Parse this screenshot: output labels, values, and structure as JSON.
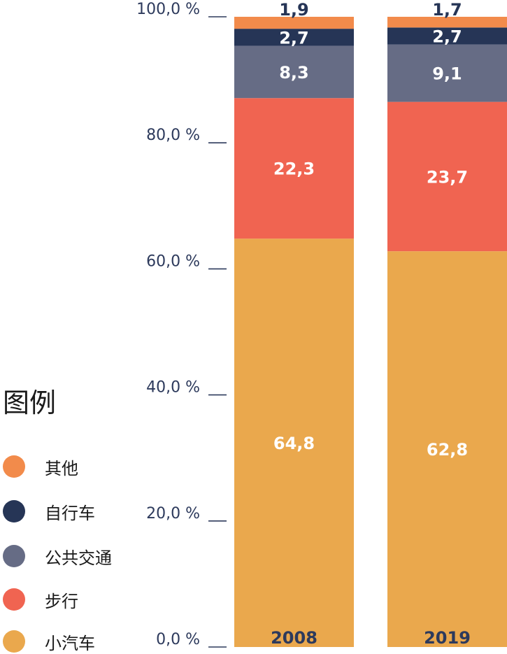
{
  "chart_data": {
    "type": "bar",
    "stacked": true,
    "categories": [
      "2008",
      "2019"
    ],
    "series": [
      {
        "name": "小汽车",
        "color": "#eaa84d",
        "values": [
          64.8,
          62.8
        ],
        "labels": [
          "64,8",
          "62,8"
        ],
        "label_color": "#ffffff"
      },
      {
        "name": "步行",
        "color": "#f06451",
        "values": [
          22.3,
          23.7
        ],
        "labels": [
          "22,3",
          "23,7"
        ],
        "label_color": "#ffffff"
      },
      {
        "name": "公共交通",
        "color": "#666c85",
        "values": [
          8.3,
          9.1
        ],
        "labels": [
          "8,3",
          "9,1"
        ],
        "label_color": "#ffffff"
      },
      {
        "name": "自行车",
        "color": "#263556",
        "values": [
          2.7,
          2.7
        ],
        "labels": [
          "2,7",
          "2,7"
        ],
        "label_color": "#ffffff"
      },
      {
        "name": "其他",
        "color": "#f28b4b",
        "values": [
          1.9,
          1.7
        ],
        "labels": [
          "1,9",
          "1,7"
        ],
        "label_color": "#263556"
      }
    ],
    "ylim": [
      0,
      100
    ],
    "yticks": [
      {
        "value": 0,
        "label": "0,0 %"
      },
      {
        "value": 20,
        "label": "20,0 %"
      },
      {
        "value": 40,
        "label": "40,0 %"
      },
      {
        "value": 60,
        "label": "60,0 %"
      },
      {
        "value": 80,
        "label": "80,0 %"
      },
      {
        "value": 100,
        "label": "100,0 %"
      }
    ],
    "grid": false,
    "legend_placement": "bottom-left"
  },
  "legend": {
    "title": "图例",
    "items": [
      {
        "label": "其他",
        "color": "#f28b4b"
      },
      {
        "label": "自行车",
        "color": "#263556"
      },
      {
        "label": "公共交通",
        "color": "#666c85"
      },
      {
        "label": "步行",
        "color": "#f06451"
      },
      {
        "label": "小汽车",
        "color": "#eaa84d"
      }
    ]
  }
}
